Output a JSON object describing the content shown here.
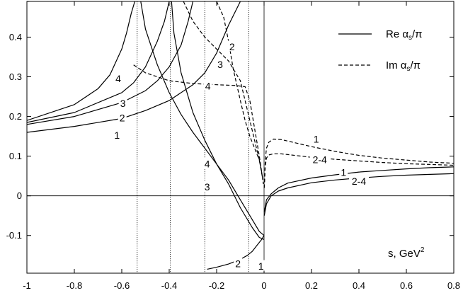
{
  "chart_data": {
    "type": "line",
    "title": "",
    "xlabel": "s, GeV",
    "xlabel_sup": "2",
    "ylabel": "",
    "xlim": [
      -1,
      0.8
    ],
    "ylim": [
      -0.195,
      0.49
    ],
    "grid": false,
    "legend_placement": "top-right",
    "x_ticks": [
      -1,
      -0.8,
      -0.6,
      -0.4,
      -0.2,
      0,
      0.2,
      0.4,
      0.6,
      0.8
    ],
    "x_tick_labels": [
      "-1",
      "-0.8",
      "-0.6",
      "-0.4",
      "-0.2",
      "0",
      "0.2",
      "0.4",
      "0.6",
      "0.8"
    ],
    "y_ticks": [
      -0.1,
      0,
      0.1,
      0.2,
      0.3,
      0.4
    ],
    "y_tick_labels": [
      "-0.1",
      "0",
      "0.1",
      "0.2",
      "0.3",
      "0.4"
    ],
    "reference_lines": {
      "vertical": [
        -0.535,
        -0.395,
        -0.25,
        -0.065
      ],
      "zero_y": true,
      "zero_x": true
    },
    "legend": [
      {
        "label_main": "Re α",
        "label_sub": "s",
        "label_tail": "/π",
        "style": "solid"
      },
      {
        "label_main": "Im α",
        "label_sub": "s",
        "label_tail": "/π",
        "style": "dashed"
      }
    ],
    "series": [
      {
        "name": "1",
        "style": "solid",
        "x": [
          -1,
          -0.8,
          -0.6,
          -0.5,
          -0.4,
          -0.3,
          -0.25,
          -0.2,
          -0.15,
          -0.1,
          -0.07,
          -0.05,
          -0.03
        ],
        "y": [
          0.16,
          0.175,
          0.195,
          0.215,
          0.24,
          0.28,
          0.31,
          0.36,
          0.43,
          0.49,
          0.52,
          0.53,
          0.55
        ]
      },
      {
        "name": "2",
        "style": "solid",
        "x": [
          -1,
          -0.8,
          -0.6,
          -0.5,
          -0.45,
          -0.4,
          -0.35,
          -0.32,
          -0.3
        ],
        "y": [
          0.18,
          0.2,
          0.235,
          0.265,
          0.29,
          0.325,
          0.38,
          0.44,
          0.49
        ]
      },
      {
        "name": "3",
        "style": "solid",
        "x": [
          -1,
          -0.8,
          -0.6,
          -0.55,
          -0.5,
          -0.45,
          -0.42,
          -0.4
        ],
        "y": [
          0.185,
          0.21,
          0.26,
          0.285,
          0.325,
          0.39,
          0.44,
          0.49
        ]
      },
      {
        "name": "4",
        "style": "solid",
        "x": [
          -1,
          -0.8,
          -0.7,
          -0.65,
          -0.6,
          -0.58,
          -0.56,
          -0.545
        ],
        "y": [
          0.19,
          0.23,
          0.27,
          0.305,
          0.37,
          0.41,
          0.46,
          0.49
        ]
      },
      {
        "name": "3",
        "style": "solid",
        "x": [
          -0.39,
          -0.38,
          -0.35,
          -0.3,
          -0.25,
          -0.2,
          -0.15,
          -0.1,
          -0.05,
          -0.02,
          0
        ],
        "y": [
          0.49,
          0.41,
          0.31,
          0.21,
          0.14,
          0.08,
          0.03,
          -0.03,
          -0.08,
          -0.105,
          -0.11
        ]
      },
      {
        "name": "4",
        "style": "solid",
        "x": [
          -0.52,
          -0.5,
          -0.45,
          -0.4,
          -0.35,
          -0.3,
          -0.25,
          -0.2,
          -0.15,
          -0.1,
          -0.05,
          -0.02,
          0
        ],
        "y": [
          0.49,
          0.42,
          0.33,
          0.26,
          0.205,
          0.16,
          0.12,
          0.08,
          0.04,
          -0.01,
          -0.06,
          -0.09,
          -0.1
        ]
      },
      {
        "name": "2",
        "style": "solid",
        "x": [
          -0.24,
          -0.2,
          -0.15,
          -0.1,
          -0.07,
          -0.05,
          -0.03,
          -0.01,
          0
        ],
        "y": [
          -0.185,
          -0.18,
          -0.172,
          -0.16,
          -0.15,
          -0.14,
          -0.125,
          -0.11,
          -0.1
        ]
      },
      {
        "name": "1",
        "style": "solid",
        "x": [
          0.001,
          0.01,
          0.03,
          0.06,
          0.1,
          0.2,
          0.3,
          0.4,
          0.5,
          0.6,
          0.7,
          0.8
        ],
        "y": [
          -0.04,
          -0.01,
          0.005,
          0.02,
          0.032,
          0.045,
          0.053,
          0.06,
          0.064,
          0.068,
          0.071,
          0.073
        ]
      },
      {
        "name": "2-4",
        "style": "solid",
        "x": [
          0.001,
          0.01,
          0.03,
          0.06,
          0.1,
          0.2,
          0.3,
          0.4,
          0.5,
          0.6,
          0.7,
          0.8
        ],
        "y": [
          -0.05,
          -0.02,
          0.0,
          0.012,
          0.02,
          0.033,
          0.04,
          0.045,
          0.049,
          0.052,
          0.054,
          0.056
        ]
      },
      {
        "name": "1",
        "style": "dashed",
        "x": [
          -1,
          -0.99
        ],
        "y": [
          0.49,
          0.49
        ]
      },
      {
        "name": "2",
        "style": "dashed",
        "x": [
          -0.2,
          -0.17,
          -0.15,
          -0.13,
          -0.1,
          -0.08,
          -0.06,
          -0.04,
          -0.02,
          -0.01,
          -0.003
        ],
        "y": [
          0.49,
          0.45,
          0.39,
          0.32,
          0.24,
          0.19,
          0.15,
          0.12,
          0.09,
          0.06,
          0.03
        ]
      },
      {
        "name": "3",
        "style": "dashed",
        "x": [
          -0.34,
          -0.3,
          -0.25,
          -0.2,
          -0.15,
          -0.1,
          -0.08,
          -0.06,
          -0.04,
          -0.02,
          -0.005
        ],
        "y": [
          0.49,
          0.44,
          0.4,
          0.37,
          0.34,
          0.29,
          0.24,
          0.19,
          0.14,
          0.09,
          0.04
        ]
      },
      {
        "name": "4",
        "style": "dashed",
        "x": [
          -0.55,
          -0.5,
          -0.45,
          -0.4,
          -0.3,
          -0.2,
          -0.12,
          -0.08,
          -0.06,
          -0.04,
          -0.02,
          -0.005
        ],
        "y": [
          0.33,
          0.31,
          0.3,
          0.29,
          0.283,
          0.28,
          0.278,
          0.275,
          0.24,
          0.17,
          0.1,
          0.04
        ]
      },
      {
        "name": "1",
        "style": "dashed",
        "x": [
          0.001,
          0.005,
          0.01,
          0.02,
          0.04,
          0.07,
          0.1,
          0.2,
          0.3,
          0.4,
          0.5,
          0.6,
          0.7,
          0.8
        ],
        "y": [
          0.02,
          0.09,
          0.12,
          0.135,
          0.143,
          0.142,
          0.138,
          0.124,
          0.112,
          0.102,
          0.095,
          0.09,
          0.085,
          0.082
        ]
      },
      {
        "name": "2-4",
        "style": "dashed",
        "x": [
          0.001,
          0.005,
          0.01,
          0.02,
          0.04,
          0.07,
          0.1,
          0.2,
          0.3,
          0.4,
          0.5,
          0.6,
          0.7,
          0.8
        ],
        "y": [
          0.02,
          0.075,
          0.095,
          0.103,
          0.106,
          0.106,
          0.104,
          0.097,
          0.092,
          0.088,
          0.084,
          0.081,
          0.079,
          0.077
        ]
      }
    ],
    "curve_labels": [
      {
        "text": "4",
        "x": -0.615,
        "y": 0.295
      },
      {
        "text": "3",
        "x": -0.595,
        "y": 0.232
      },
      {
        "text": "2",
        "x": -0.598,
        "y": 0.196
      },
      {
        "text": "1",
        "x": -0.62,
        "y": 0.152
      },
      {
        "text": "4",
        "x": -0.24,
        "y": 0.08
      },
      {
        "text": "3",
        "x": -0.24,
        "y": 0.022
      },
      {
        "text": "2",
        "x": -0.11,
        "y": -0.172
      },
      {
        "text": "1",
        "x": -0.013,
        "y": -0.178
      },
      {
        "text": "2",
        "x": -0.135,
        "y": 0.375
      },
      {
        "text": "3",
        "x": -0.185,
        "y": 0.33
      },
      {
        "text": "4",
        "x": -0.237,
        "y": 0.276
      },
      {
        "text": "1",
        "x": 0.22,
        "y": 0.142
      },
      {
        "text": "2-4",
        "x": 0.235,
        "y": 0.09
      },
      {
        "text": "1",
        "x": 0.335,
        "y": 0.058
      },
      {
        "text": "2-4",
        "x": 0.4,
        "y": 0.036
      }
    ]
  }
}
